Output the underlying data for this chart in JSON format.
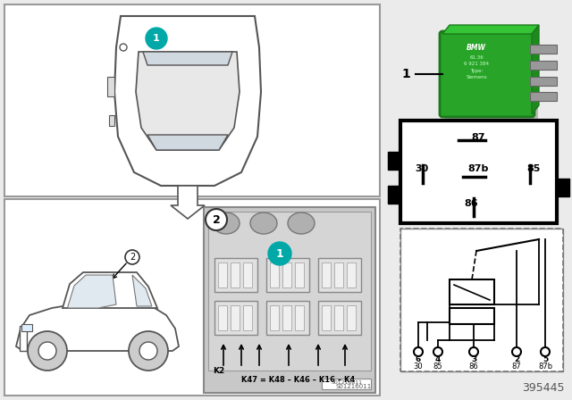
{
  "bg_color": "#ebebeb",
  "white": "#ffffff",
  "black": "#000000",
  "teal": "#00a8a8",
  "green_relay": "#2db82d",
  "part_number": "395445",
  "relay_pin_top": "87",
  "relay_pin_ml": "30",
  "relay_pin_mc": "87b",
  "relay_pin_mr": "85",
  "relay_pin_bot": "86",
  "circuit_labels_top": [
    "6",
    "4",
    "3",
    "2",
    "5"
  ],
  "circuit_labels_bot": [
    "30",
    "85",
    "86",
    "87",
    "87b"
  ],
  "fuse_labels": [
    "K47 = K48",
    "K46",
    "K16",
    "K4"
  ],
  "image_id": "S01216011"
}
